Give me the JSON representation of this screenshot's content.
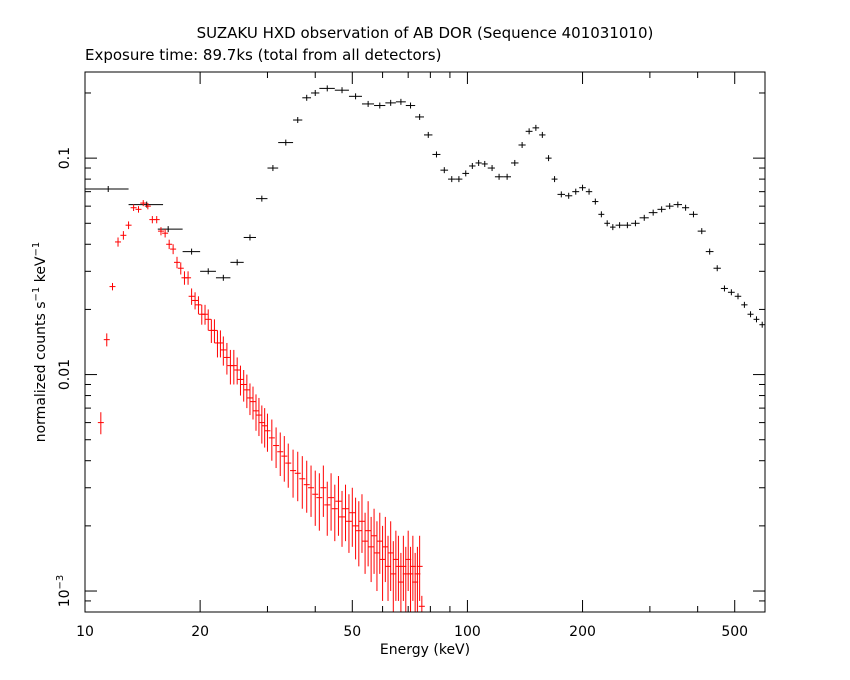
{
  "chart_data": {
    "type": "scatter",
    "title": "SUZAKU HXD observation of AB DOR (Sequence 401031010)",
    "subtitle": "Exposure time: 89.7ks (total from all detectors)",
    "xlabel": "Energy (keV)",
    "ylabel_main": "normalized counts s",
    "ylabel_sup1": "−1",
    "ylabel_mid": " keV",
    "ylabel_sup2": "−1",
    "x_scale": "log",
    "y_scale": "log",
    "xlim": [
      10,
      600
    ],
    "ylim": [
      0.0008,
      0.25
    ],
    "grid": false,
    "x_ticks": [
      {
        "value": 10,
        "label": "10"
      },
      {
        "value": 20,
        "label": "20"
      },
      {
        "value": 50,
        "label": "50"
      },
      {
        "value": 100,
        "label": "100"
      },
      {
        "value": 200,
        "label": "200"
      },
      {
        "value": 500,
        "label": "500"
      }
    ],
    "y_ticks": [
      {
        "value": 0.001,
        "label": "10",
        "sup": "−3"
      },
      {
        "value": 0.01,
        "label": "0.01",
        "sup": ""
      },
      {
        "value": 0.1,
        "label": "0.1",
        "sup": ""
      }
    ],
    "series": [
      {
        "color": "#000000",
        "points": [
          [
            11.5,
            0.072,
            10,
            13
          ],
          [
            14.5,
            0.061,
            13,
            16
          ],
          [
            16.5,
            0.047,
            15.5,
            18
          ],
          [
            19,
            0.037,
            18,
            20
          ],
          [
            21,
            0.03,
            20,
            22
          ],
          [
            23,
            0.028,
            22,
            24
          ],
          [
            25,
            0.033,
            24,
            26
          ],
          [
            27,
            0.043,
            26,
            28
          ],
          [
            29,
            0.065,
            28,
            30
          ],
          [
            31,
            0.09,
            30,
            32
          ],
          [
            33.5,
            0.118,
            32,
            35
          ],
          [
            36,
            0.15,
            35,
            37
          ],
          [
            38,
            0.19,
            37,
            39
          ],
          [
            40,
            0.2,
            39,
            41
          ],
          [
            43,
            0.21,
            41,
            45
          ],
          [
            47,
            0.206,
            45,
            49
          ],
          [
            51,
            0.193,
            49,
            53
          ],
          [
            55,
            0.178,
            53,
            57
          ],
          [
            59,
            0.175,
            57,
            61
          ],
          [
            63,
            0.18,
            61,
            65
          ],
          [
            67,
            0.182,
            65,
            69
          ],
          [
            71,
            0.175,
            69,
            73
          ],
          [
            75,
            0.155,
            73,
            77
          ],
          [
            79,
            0.128,
            77,
            81
          ],
          [
            83,
            0.104,
            81,
            85
          ],
          [
            87,
            0.088,
            85,
            89
          ],
          [
            91,
            0.08,
            89,
            93
          ],
          [
            95,
            0.08,
            93,
            97
          ],
          [
            99,
            0.085,
            97,
            101
          ],
          [
            103,
            0.092,
            101,
            105
          ],
          [
            107,
            0.095,
            105,
            109
          ],
          [
            111,
            0.094,
            109,
            113
          ],
          [
            116,
            0.09,
            113,
            118
          ],
          [
            121,
            0.082,
            118,
            124
          ],
          [
            127,
            0.082,
            124,
            130
          ],
          [
            133,
            0.095,
            130,
            136
          ],
          [
            139,
            0.115,
            136,
            142
          ],
          [
            145,
            0.133,
            142,
            148
          ],
          [
            151,
            0.138,
            148,
            154
          ],
          [
            157,
            0.128,
            154,
            160
          ],
          [
            163,
            0.1,
            160,
            166
          ],
          [
            169,
            0.08,
            166,
            172
          ],
          [
            176,
            0.068,
            172,
            180
          ],
          [
            184,
            0.067,
            180,
            188
          ],
          [
            192,
            0.07,
            188,
            196
          ],
          [
            200,
            0.073,
            196,
            204
          ],
          [
            208,
            0.07,
            204,
            212
          ],
          [
            216,
            0.063,
            212,
            220
          ],
          [
            224,
            0.055,
            220,
            228
          ],
          [
            232,
            0.05,
            228,
            236
          ],
          [
            240,
            0.048,
            236,
            244
          ],
          [
            250,
            0.049,
            244,
            256
          ],
          [
            262,
            0.049,
            256,
            268
          ],
          [
            275,
            0.05,
            268,
            282
          ],
          [
            290,
            0.053,
            282,
            298
          ],
          [
            306,
            0.056,
            298,
            314
          ],
          [
            322,
            0.058,
            314,
            330
          ],
          [
            338,
            0.06,
            330,
            346
          ],
          [
            355,
            0.061,
            346,
            364
          ],
          [
            372,
            0.059,
            364,
            380
          ],
          [
            390,
            0.055,
            380,
            400
          ],
          [
            410,
            0.046,
            400,
            420
          ],
          [
            430,
            0.037,
            420,
            440
          ],
          [
            450,
            0.031,
            440,
            460
          ],
          [
            470,
            0.025,
            460,
            480
          ],
          [
            490,
            0.024,
            480,
            500
          ],
          [
            510,
            0.023,
            500,
            520
          ],
          [
            530,
            0.021,
            520,
            540
          ],
          [
            550,
            0.019,
            540,
            560
          ],
          [
            570,
            0.018,
            560,
            580
          ],
          [
            590,
            0.017,
            580,
            600
          ]
        ]
      },
      {
        "color": "#ff0000",
        "points": [
          [
            11.0,
            0.006,
            0.0053,
            0.0067
          ],
          [
            11.4,
            0.0145,
            0.0135,
            0.0155
          ],
          [
            11.8,
            0.0255,
            0.0245,
            0.0265
          ],
          [
            12.2,
            0.041,
            0.039,
            0.043
          ],
          [
            12.6,
            0.044,
            0.042,
            0.046
          ],
          [
            13.0,
            0.049,
            0.047,
            0.051
          ],
          [
            13.4,
            0.059,
            0.057,
            0.061
          ],
          [
            13.8,
            0.058,
            0.056,
            0.06
          ],
          [
            14.2,
            0.062,
            0.06,
            0.064
          ],
          [
            14.6,
            0.06,
            0.058,
            0.062
          ],
          [
            15.0,
            0.052,
            0.05,
            0.054
          ],
          [
            15.4,
            0.052,
            0.05,
            0.054
          ],
          [
            15.8,
            0.046,
            0.044,
            0.048
          ],
          [
            16.2,
            0.045,
            0.043,
            0.047
          ],
          [
            16.6,
            0.04,
            0.038,
            0.042
          ],
          [
            17.0,
            0.038,
            0.036,
            0.04
          ],
          [
            17.4,
            0.033,
            0.031,
            0.035
          ],
          [
            17.8,
            0.031,
            0.029,
            0.033
          ],
          [
            18.2,
            0.028,
            0.026,
            0.03
          ],
          [
            18.6,
            0.028,
            0.026,
            0.03
          ],
          [
            19.0,
            0.023,
            0.021,
            0.025
          ],
          [
            19.4,
            0.022,
            0.02,
            0.024
          ],
          [
            19.8,
            0.021,
            0.019,
            0.023
          ],
          [
            20.2,
            0.019,
            0.017,
            0.021
          ],
          [
            20.6,
            0.019,
            0.017,
            0.021
          ],
          [
            21.0,
            0.018,
            0.016,
            0.02
          ],
          [
            21.4,
            0.016,
            0.014,
            0.018
          ],
          [
            21.8,
            0.016,
            0.014,
            0.018
          ],
          [
            22.2,
            0.014,
            0.012,
            0.016
          ],
          [
            22.6,
            0.014,
            0.012,
            0.016
          ],
          [
            23.0,
            0.013,
            0.011,
            0.015
          ],
          [
            23.5,
            0.012,
            0.01,
            0.014
          ],
          [
            24.0,
            0.011,
            0.009,
            0.013
          ],
          [
            24.5,
            0.011,
            0.009,
            0.013
          ],
          [
            25.0,
            0.0105,
            0.009,
            0.012
          ],
          [
            25.5,
            0.0095,
            0.008,
            0.011
          ],
          [
            26.0,
            0.009,
            0.0075,
            0.0105
          ],
          [
            26.5,
            0.0085,
            0.007,
            0.01
          ],
          [
            27.0,
            0.0078,
            0.0065,
            0.0091
          ],
          [
            27.5,
            0.0075,
            0.0062,
            0.0088
          ],
          [
            28.0,
            0.0068,
            0.0055,
            0.0081
          ],
          [
            28.5,
            0.0065,
            0.0052,
            0.0078
          ],
          [
            29.0,
            0.006,
            0.0048,
            0.0072
          ],
          [
            29.5,
            0.0058,
            0.0046,
            0.007
          ],
          [
            30.0,
            0.0055,
            0.0044,
            0.0066
          ],
          [
            30.8,
            0.0051,
            0.004,
            0.0062
          ],
          [
            31.6,
            0.0047,
            0.0037,
            0.0057
          ],
          [
            32.4,
            0.0044,
            0.0034,
            0.0054
          ],
          [
            33.2,
            0.0042,
            0.0032,
            0.0052
          ],
          [
            34.0,
            0.0039,
            0.003,
            0.0048
          ],
          [
            35.0,
            0.0036,
            0.0027,
            0.0045
          ],
          [
            36.0,
            0.0035,
            0.0026,
            0.0044
          ],
          [
            37.0,
            0.0033,
            0.0024,
            0.0042
          ],
          [
            38.0,
            0.0031,
            0.0023,
            0.004
          ],
          [
            39.0,
            0.003,
            0.0022,
            0.0038
          ],
          [
            40.0,
            0.0028,
            0.002,
            0.0036
          ],
          [
            41.0,
            0.0027,
            0.0019,
            0.0035
          ],
          [
            42.0,
            0.003,
            0.0022,
            0.0038
          ],
          [
            43.0,
            0.0025,
            0.0018,
            0.0032
          ],
          [
            44.0,
            0.0027,
            0.0019,
            0.0035
          ],
          [
            45.0,
            0.0024,
            0.0017,
            0.0031
          ],
          [
            46.0,
            0.0026,
            0.0018,
            0.0034
          ],
          [
            47.0,
            0.0022,
            0.0016,
            0.0029
          ],
          [
            48.0,
            0.0024,
            0.0017,
            0.0031
          ],
          [
            49.0,
            0.0021,
            0.0015,
            0.0028
          ],
          [
            50.0,
            0.0023,
            0.0016,
            0.003
          ],
          [
            51.0,
            0.002,
            0.0014,
            0.0027
          ],
          [
            52.0,
            0.0019,
            0.0013,
            0.0026
          ],
          [
            53.0,
            0.0021,
            0.0015,
            0.0028
          ],
          [
            54.0,
            0.0017,
            0.0012,
            0.0023
          ],
          [
            55.0,
            0.0019,
            0.0013,
            0.0026
          ],
          [
            56.0,
            0.0016,
            0.0011,
            0.0022
          ],
          [
            57.0,
            0.0018,
            0.0012,
            0.0024
          ],
          [
            58.0,
            0.0015,
            0.001,
            0.0021
          ],
          [
            59.0,
            0.0017,
            0.0012,
            0.0023
          ],
          [
            60.0,
            0.0014,
            0.0009,
            0.002
          ],
          [
            61.0,
            0.0016,
            0.0011,
            0.0022
          ],
          [
            62.0,
            0.0013,
            0.0009,
            0.0018
          ],
          [
            63.0,
            0.0015,
            0.001,
            0.0021
          ],
          [
            64.0,
            0.0012,
            0.0008,
            0.0017
          ],
          [
            65.0,
            0.0014,
            0.0009,
            0.0019
          ],
          [
            66.0,
            0.0013,
            0.0009,
            0.0018
          ],
          [
            67.0,
            0.0011,
            0.0008,
            0.0015
          ],
          [
            68.0,
            0.0013,
            0.0009,
            0.0018
          ],
          [
            69.0,
            0.0012,
            0.0008,
            0.0016
          ],
          [
            70.0,
            0.0014,
            0.001,
            0.0019
          ],
          [
            71.0,
            0.0012,
            0.0008,
            0.0016
          ],
          [
            72.0,
            0.0013,
            0.0009,
            0.0018
          ],
          [
            73.0,
            0.0011,
            0.0008,
            0.0015
          ],
          [
            74.0,
            0.0012,
            0.0008,
            0.0016
          ],
          [
            75.0,
            0.0013,
            0.0009,
            0.0018
          ],
          [
            76.0,
            0.00085,
            0.0008,
            0.00095
          ]
        ]
      }
    ]
  }
}
